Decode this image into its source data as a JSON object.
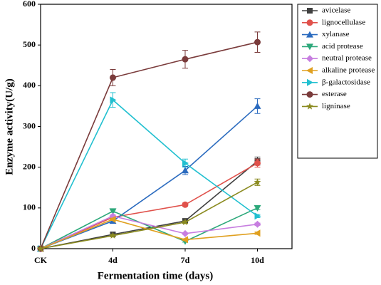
{
  "chart_data": {
    "type": "line",
    "xlabel": "Fermentation time (days)",
    "ylabel": "Enzyme activity(U/g)",
    "categories": [
      "CK",
      "4d",
      "7d",
      "10d"
    ],
    "ylim": [
      0,
      600
    ],
    "yticks": [
      0,
      100,
      200,
      300,
      400,
      500,
      600
    ],
    "legend": "right",
    "series": [
      {
        "name": "avicelase",
        "color": "#404040",
        "marker": "square",
        "values": [
          0,
          35,
          68,
          215
        ],
        "errors": [
          0,
          3,
          3,
          10
        ]
      },
      {
        "name": "lignocellulase",
        "color": "#e0514b",
        "marker": "circle",
        "values": [
          0,
          77,
          108,
          210
        ],
        "errors": [
          0,
          3,
          4,
          10
        ]
      },
      {
        "name": "xylanase",
        "color": "#2b6bbf",
        "marker": "triangle-up",
        "values": [
          0,
          68,
          192,
          350
        ],
        "errors": [
          0,
          4,
          10,
          18
        ]
      },
      {
        "name": "acid protease",
        "color": "#2ca87a",
        "marker": "triangle-down",
        "values": [
          0,
          92,
          18,
          100
        ],
        "errors": [
          0,
          3,
          2,
          4
        ]
      },
      {
        "name": "neutral protease",
        "color": "#c77ee0",
        "marker": "diamond",
        "values": [
          0,
          80,
          37,
          60
        ],
        "errors": [
          0,
          3,
          2,
          3
        ]
      },
      {
        "name": "alkaline protease",
        "color": "#e0a020",
        "marker": "triangle-left",
        "values": [
          0,
          72,
          22,
          38
        ],
        "errors": [
          0,
          3,
          2,
          3
        ]
      },
      {
        "name": "β-galactosidase",
        "color": "#22c0d0",
        "marker": "triangle-right",
        "values": [
          0,
          365,
          210,
          80
        ],
        "errors": [
          0,
          18,
          10,
          4
        ]
      },
      {
        "name": "esterase",
        "color": "#7a3b3b",
        "marker": "circle",
        "values": [
          0,
          420,
          465,
          507
        ],
        "errors": [
          0,
          20,
          22,
          25
        ]
      },
      {
        "name": "ligninase",
        "color": "#8b8b20",
        "marker": "star",
        "values": [
          0,
          32,
          65,
          163
        ],
        "errors": [
          0,
          3,
          3,
          8
        ]
      }
    ]
  }
}
